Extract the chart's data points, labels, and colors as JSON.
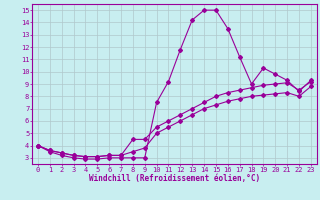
{
  "xlabel": "Windchill (Refroidissement éolien,°C)",
  "bg_color": "#c8eef0",
  "line_color": "#990099",
  "grid_color": "#b0c8cc",
  "xlim": [
    -0.5,
    23.5
  ],
  "ylim": [
    2.5,
    15.5
  ],
  "yticks": [
    3,
    4,
    5,
    6,
    7,
    8,
    9,
    10,
    11,
    12,
    13,
    14,
    15
  ],
  "xticks": [
    0,
    1,
    2,
    3,
    4,
    5,
    6,
    7,
    8,
    9,
    10,
    11,
    12,
    13,
    14,
    15,
    16,
    17,
    18,
    19,
    20,
    21,
    22,
    23
  ],
  "line1_x": [
    0,
    1,
    2,
    3,
    4,
    5,
    6,
    7,
    8,
    9,
    10,
    11,
    12,
    13,
    14,
    15,
    16,
    17,
    18,
    19,
    20,
    21,
    22,
    23
  ],
  "line1_y": [
    4.0,
    3.5,
    3.2,
    3.0,
    2.9,
    2.9,
    3.0,
    3.0,
    3.0,
    3.0,
    7.5,
    9.2,
    11.8,
    14.2,
    15.0,
    15.0,
    13.5,
    11.2,
    9.0,
    10.3,
    9.8,
    9.3,
    8.4,
    9.3
  ],
  "line2_x": [
    0,
    1,
    2,
    3,
    4,
    5,
    6,
    7,
    8,
    9,
    10,
    11,
    12,
    13,
    14,
    15,
    16,
    17,
    18,
    19,
    20,
    21,
    22,
    23
  ],
  "line2_y": [
    4.0,
    3.6,
    3.4,
    3.2,
    3.1,
    3.1,
    3.2,
    3.2,
    4.5,
    4.5,
    5.5,
    6.0,
    6.5,
    7.0,
    7.5,
    8.0,
    8.3,
    8.5,
    8.7,
    8.9,
    9.0,
    9.1,
    8.5,
    9.2
  ],
  "line3_x": [
    0,
    1,
    2,
    3,
    4,
    5,
    6,
    7,
    8,
    9,
    10,
    11,
    12,
    13,
    14,
    15,
    16,
    17,
    18,
    19,
    20,
    21,
    22,
    23
  ],
  "line3_y": [
    4.0,
    3.6,
    3.4,
    3.2,
    3.1,
    3.1,
    3.2,
    3.2,
    3.5,
    3.8,
    5.0,
    5.5,
    6.0,
    6.5,
    7.0,
    7.3,
    7.6,
    7.8,
    8.0,
    8.1,
    8.2,
    8.3,
    8.0,
    8.8
  ],
  "tick_fontsize": 5,
  "xlabel_fontsize": 5.5,
  "marker_size": 2.0,
  "line_width": 0.8
}
